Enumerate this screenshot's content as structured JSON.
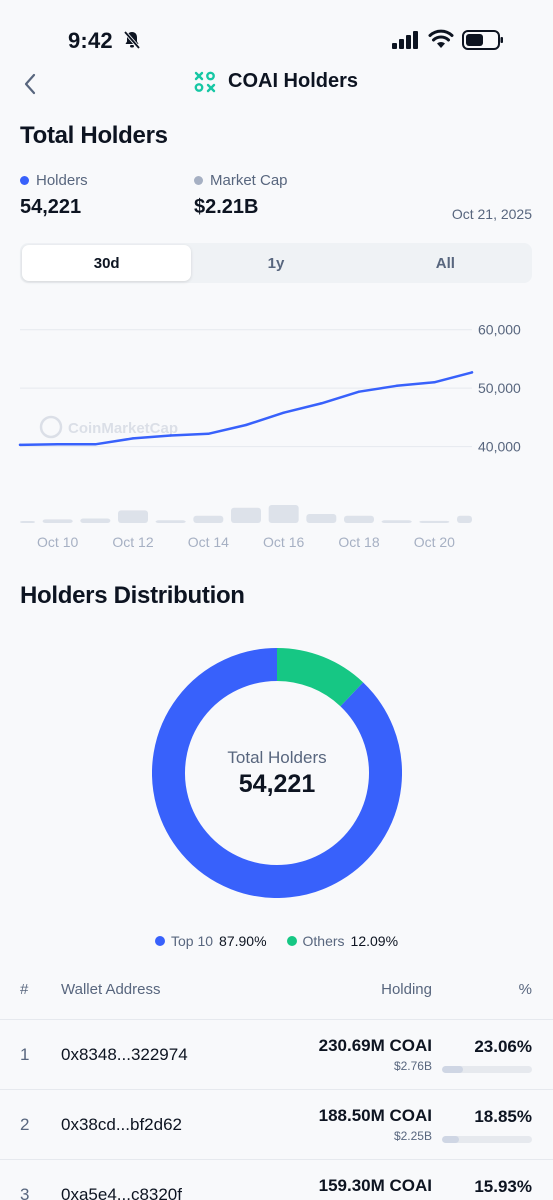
{
  "status_bar": {
    "time": "9:42"
  },
  "header": {
    "title": "COAI Holders"
  },
  "summary": {
    "section_title": "Total Holders",
    "holders_label": "Holders",
    "holders_value": "54,221",
    "market_cap_label": "Market Cap",
    "market_cap_value": "$2.21B",
    "date": "Oct 21, 2025"
  },
  "range_tabs": [
    {
      "label": "30d",
      "active": true
    },
    {
      "label": "1y",
      "active": false
    },
    {
      "label": "All",
      "active": false
    }
  ],
  "colors": {
    "accent_blue": "#3861fb",
    "green": "#16c784",
    "grey_dot": "#a6b0c3"
  },
  "chart_data": {
    "type": "line",
    "title": "",
    "watermark": "CoinMarketCap",
    "x": [
      "Oct 9",
      "Oct 10",
      "Oct 11",
      "Oct 12",
      "Oct 13",
      "Oct 14",
      "Oct 15",
      "Oct 16",
      "Oct 17",
      "Oct 18",
      "Oct 19",
      "Oct 20",
      "Oct 21"
    ],
    "xticks": [
      "Oct 10",
      "Oct 12",
      "Oct 14",
      "Oct 16",
      "Oct 18",
      "Oct 20"
    ],
    "series": [
      {
        "values": [
          40300,
          40400,
          40400,
          41400,
          41900,
          42200,
          43700,
          45800,
          47400,
          49400,
          50400,
          51000,
          52700
        ]
      }
    ],
    "volume_bars": [
      1,
      2,
      2.5,
      7,
      1.5,
      4,
      8.5,
      10,
      5,
      4,
      1.5,
      1.2,
      4
    ],
    "yticks": [
      "60,000",
      "50,000",
      "40,000"
    ],
    "ylim": [
      36000,
      62000
    ],
    "grid": true
  },
  "distribution": {
    "section_title": "Holders Distribution",
    "center_caption": "Total Holders",
    "center_value": "54,221",
    "slices": [
      {
        "name": "Top 10",
        "pct_label": "87.90%",
        "value": 87.9,
        "color": "#3861fb"
      },
      {
        "name": "Others",
        "pct_label": "12.09%",
        "value": 12.09,
        "color": "#16c784"
      }
    ]
  },
  "table": {
    "columns": {
      "rank": "#",
      "address": "Wallet Address",
      "holding": "Holding",
      "pct": "%"
    },
    "rows": [
      {
        "rank": "1",
        "address": "0x8348...322974",
        "holding": "230.69M COAI",
        "usd": "$2.76B",
        "pct": "23.06%",
        "share": 0.2306
      },
      {
        "rank": "2",
        "address": "0x38cd...bf2d62",
        "holding": "188.50M COAI",
        "usd": "$2.25B",
        "pct": "18.85%",
        "share": 0.1885
      },
      {
        "rank": "3",
        "address": "0xa5e4...c8320f",
        "holding": "159.30M COAI",
        "usd": "",
        "pct": "15.93%",
        "share": 0.1593
      }
    ]
  }
}
